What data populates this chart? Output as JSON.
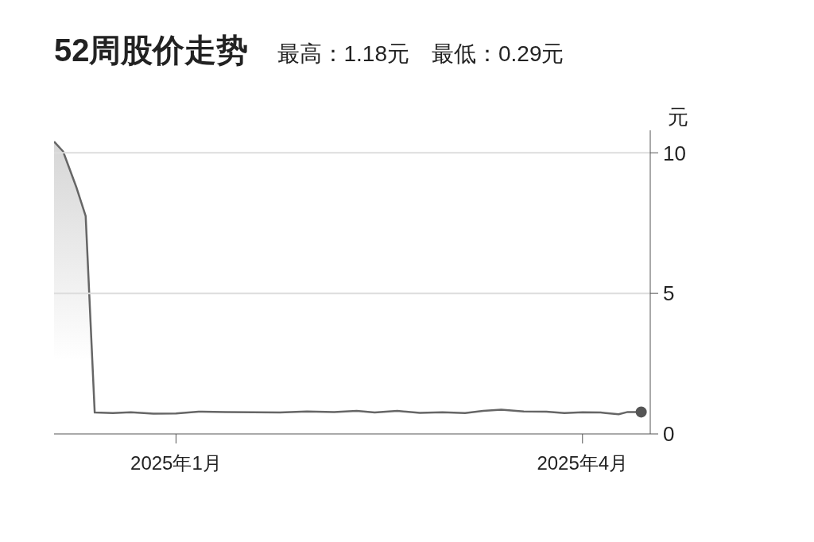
{
  "chart_data": {
    "type": "area",
    "title": "52周股价走势",
    "subtitle": "最高：1.18元　最低：0.29元",
    "ylabel": "元",
    "series": [
      {
        "color": "#666666",
        "marker": "none",
        "x": [
          "2024-12-05",
          "2024-12-07",
          "2024-12-10",
          "2024-12-12",
          "2024-12-14",
          "2024-12-18",
          "2024-12-22",
          "2024-12-27",
          "2025-01-01",
          "2025-01-06",
          "2025-01-12",
          "2025-01-18",
          "2025-01-24",
          "2025-01-30",
          "2025-02-05",
          "2025-02-10",
          "2025-02-14",
          "2025-02-19",
          "2025-02-24",
          "2025-03-01",
          "2025-03-06",
          "2025-03-10",
          "2025-03-14",
          "2025-03-19",
          "2025-03-24",
          "2025-03-28",
          "2025-04-01",
          "2025-04-05",
          "2025-04-09",
          "2025-04-11",
          "2025-04-14"
        ],
        "values": [
          10.4,
          10.05,
          8.75,
          7.75,
          0.76,
          0.74,
          0.77,
          0.72,
          0.73,
          0.79,
          0.78,
          0.77,
          0.76,
          0.8,
          0.78,
          0.82,
          0.76,
          0.82,
          0.75,
          0.77,
          0.74,
          0.82,
          0.86,
          0.8,
          0.79,
          0.74,
          0.77,
          0.76,
          0.7,
          0.78,
          0.78
        ]
      },
      {
        "type": "scatter",
        "marker": "circle",
        "color": "#555555",
        "x": [
          "2025-04-14"
        ],
        "values": [
          0.78
        ]
      }
    ],
    "xlim": [
      "2024-12-05",
      "2025-04-16"
    ],
    "xticks": [
      {
        "value": "2025-01-01",
        "label": "2025年1月"
      },
      {
        "value": "2025-04-01",
        "label": "2025年4月"
      }
    ],
    "ylim": [
      0,
      10.8
    ],
    "yticks": [
      0,
      5,
      10
    ],
    "grid": "y",
    "line_style": "solid"
  }
}
